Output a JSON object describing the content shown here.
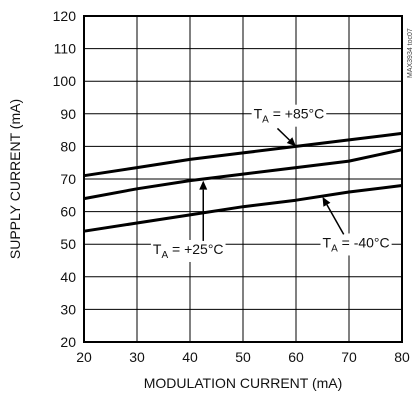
{
  "chart_data": {
    "type": "line",
    "xlabel": "MODULATION CURRENT (mA)",
    "ylabel": "SUPPLY CURRENT (mA)",
    "xlim": [
      20,
      80
    ],
    "ylim": [
      20,
      120
    ],
    "xticks": [
      20,
      30,
      40,
      50,
      60,
      70,
      80
    ],
    "yticks": [
      20,
      30,
      40,
      50,
      60,
      70,
      80,
      90,
      100,
      110,
      120
    ],
    "grid": true,
    "watermark": "MAX3934 toc07",
    "series": [
      {
        "name": "TA = +85°C",
        "x": [
          20,
          30,
          40,
          50,
          60,
          70,
          80
        ],
        "y": [
          71.0,
          73.5,
          76.0,
          78.0,
          80.0,
          82.0,
          84.0
        ]
      },
      {
        "name": "TA = +25°C",
        "x": [
          20,
          30,
          40,
          50,
          60,
          70,
          80
        ],
        "y": [
          64.0,
          67.0,
          69.5,
          71.5,
          73.5,
          75.5,
          79.0
        ]
      },
      {
        "name": "TA = -40°C",
        "x": [
          20,
          30,
          40,
          50,
          60,
          70,
          80
        ],
        "y": [
          54.0,
          56.5,
          59.0,
          61.5,
          63.5,
          66.0,
          68.0
        ]
      }
    ],
    "annotations": [
      {
        "series": 0,
        "main": "T",
        "sub": "A",
        "rest": " = +85°C",
        "text_x": 52.0,
        "text_y": 88.5,
        "arrow_from": [
          56.5,
          85.5
        ],
        "arrow_to": [
          60.0,
          80.0
        ]
      },
      {
        "series": 1,
        "main": "T",
        "sub": "A",
        "rest": " = +25°C",
        "text_x": 33.0,
        "text_y": 47.0,
        "arrow_from": [
          42.5,
          51.0
        ],
        "arrow_to": [
          42.5,
          69.5
        ]
      },
      {
        "series": 2,
        "main": "T",
        "sub": "A",
        "rest": " = -40°C",
        "text_x": 65.0,
        "text_y": 49.0,
        "arrow_from": [
          69.0,
          53.0
        ],
        "arrow_to": [
          65.0,
          64.5
        ]
      }
    ]
  }
}
